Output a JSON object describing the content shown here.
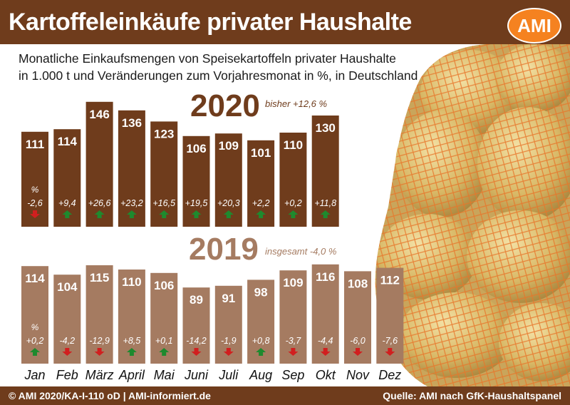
{
  "title": "Kartoffeleinkäufe privater Haushalte",
  "logo": "AMI",
  "subtitle_line1": "Monatliche Einkaufsmengen von Speisekartoffeln privater Haushalte",
  "subtitle_line2": "in 1.000 t und Veränderungen zum Vorjahresmonat in %, in Deutschland",
  "footer_left": "© AMI 2020/KA-I-110 oD | AMI-informiert.de",
  "footer_right": "Quelle: AMI nach GfK-Haushaltspanel",
  "colors": {
    "header": "#6f3c1c",
    "bar_2020": "#6f3c1c",
    "bar_2019": "#a57b61",
    "year_2020": "#6f3c1c",
    "year_2019": "#a57b61",
    "up_arrow": "#1e8a2e",
    "down_arrow": "#d11f1f",
    "logo": "#f58220"
  },
  "chart_data": [
    {
      "type": "bar",
      "year": "2020",
      "note": "bisher +12,6 %",
      "pct_symbol": "%",
      "categories": [
        "Jan",
        "Feb",
        "März",
        "April",
        "Mai",
        "Juni",
        "Juli",
        "Aug",
        "Sep",
        "Okt"
      ],
      "values": [
        111,
        114,
        146,
        136,
        123,
        106,
        109,
        101,
        110,
        130
      ],
      "changes": [
        "-2,6",
        "+9,4",
        "+26,6",
        "+23,2",
        "+16,5",
        "+19,5",
        "+20,3",
        "+2,2",
        "+0,2",
        "+11,8"
      ],
      "directions": [
        "down",
        "up",
        "up",
        "up",
        "up",
        "up",
        "up",
        "up",
        "up",
        "up"
      ]
    },
    {
      "type": "bar",
      "year": "2019",
      "note": "insgesamt -4,0 %",
      "pct_symbol": "%",
      "categories": [
        "Jan",
        "Feb",
        "März",
        "April",
        "Mai",
        "Juni",
        "Juli",
        "Aug",
        "Sep",
        "Okt",
        "Nov",
        "Dez"
      ],
      "values": [
        114,
        104,
        115,
        110,
        106,
        89,
        91,
        98,
        109,
        116,
        108,
        112
      ],
      "changes": [
        "+0,2",
        "-4,2",
        "-12,9",
        "+8,5",
        "+0,1",
        "-14,2",
        "-1,9",
        "+0,8",
        "-3,7",
        "-4,4",
        "-6,0",
        "-7,6"
      ],
      "directions": [
        "up",
        "down",
        "down",
        "up",
        "up",
        "down",
        "down",
        "up",
        "down",
        "down",
        "down",
        "down"
      ]
    }
  ],
  "months": [
    "Jan",
    "Feb",
    "März",
    "April",
    "Mai",
    "Juni",
    "Juli",
    "Aug",
    "Sep",
    "Okt",
    "Nov",
    "Dez"
  ]
}
